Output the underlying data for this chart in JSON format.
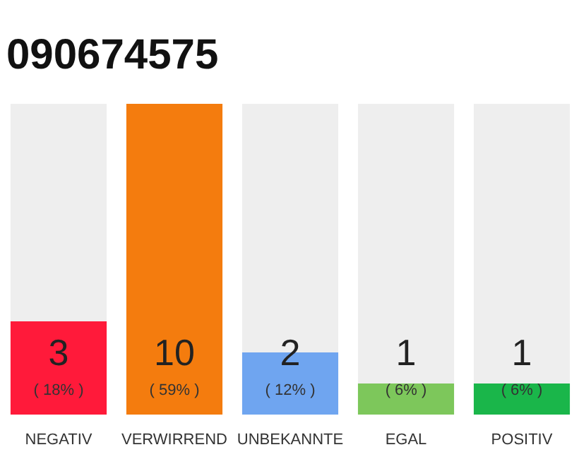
{
  "chart_data": {
    "type": "bar",
    "title": "090674575",
    "categories": [
      "NEGATIV",
      "VERWIRREND",
      "UNBEKANNTE",
      "EGAL",
      "POSITIV"
    ],
    "values": [
      3,
      10,
      2,
      1,
      1
    ],
    "colors": [
      "#ff1a3a",
      "#f47c0e",
      "#6fa5f0",
      "#7dc75b",
      "#1ab64a"
    ],
    "data_labels": true,
    "annotations": [
      "( 18% )",
      "( 59% )",
      "( 12% )",
      "( 6% )",
      "( 6% )"
    ]
  }
}
